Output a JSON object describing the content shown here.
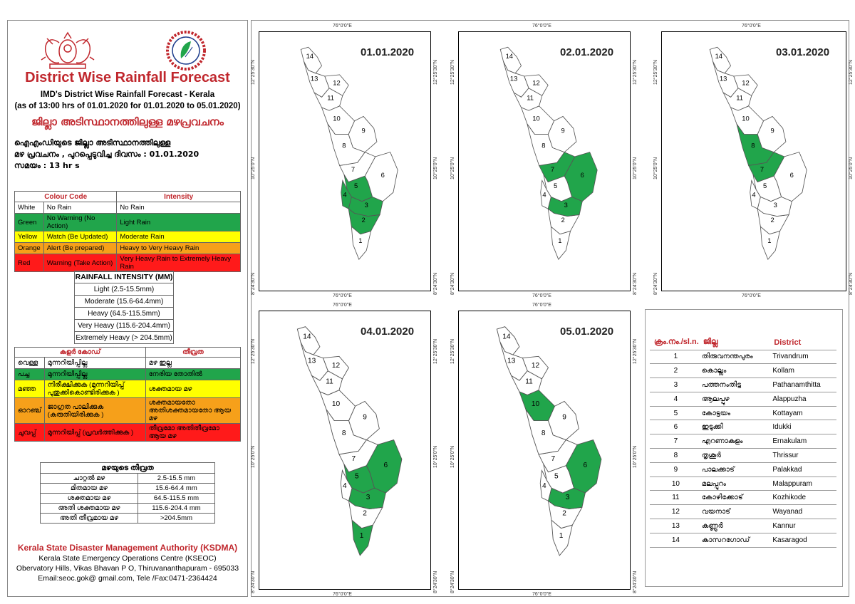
{
  "header": {
    "title": "District Wise Rainfall Forecast",
    "subtitle": "IMD's District Wise Rainfall Forecast - Kerala",
    "subtitle2": "(as of 13:00 hrs of 01.01.2020  for 01.01.2020  to 05.01.2020)",
    "mal_title": "ജില്ലാ അടിസ്ഥാനത്തിലുള്ള മഴപ്രവചനം",
    "issue_line1": "ഐഎംഡിയുടെ ജില്ലാ      അടിസ്ഥാനത്തിലുള്ള",
    "issue_line2": "മഴ പ്രവചനം  , പുറപ്പെടുവിച്ച       ദിവസം : 01.01.2020",
    "issue_line3": "സമയം : 13   hr s"
  },
  "colour_code": {
    "headers": [
      "Colour Code",
      "Intensity"
    ],
    "rows": [
      {
        "name": "White",
        "code": "No Rain",
        "intensity": "No Rain",
        "cls": "w"
      },
      {
        "name": "Green",
        "code": "No Warning (No Action)",
        "intensity": "Light Rain",
        "cls": "g"
      },
      {
        "name": "Yellow",
        "code": "Watch (Be Updated)",
        "intensity": "Moderate Rain",
        "cls": "y"
      },
      {
        "name": "Orange",
        "code": "Alert (Be prepared)",
        "intensity": "Heavy to Very Heavy Rain",
        "cls": "o"
      },
      {
        "name": "Red",
        "code": "Warning (Take Action)",
        "intensity": "Very Heavy Rain to Extremely Heavy Rain",
        "cls": "r"
      }
    ]
  },
  "rainfall_intensity": {
    "title": "RAINFALL INTENSITY (MM)",
    "rows": [
      "Light (2.5-15.5mm)",
      "Moderate (15.6-64.4mm)",
      "Heavy (64.5-115.5mm)",
      "Very Heavy (115.6-204.4mm)",
      "Extremely Heavy (> 204.5mm)"
    ]
  },
  "mal_colour_code": {
    "headers": [
      "കളർ കോഡ്",
      "തീവ്രത"
    ],
    "rows": [
      {
        "name": "വെള്ള",
        "code": "മുന്നറിയിപ്പില്ല",
        "intensity": "മഴ ഇല്ല",
        "cls": "w"
      },
      {
        "name": "പച്ച",
        "code": "മുന്നറിയിപ്പില്ല",
        "intensity": "നേരിയ തോതിൽ",
        "cls": "g"
      },
      {
        "name": "മഞ്ഞ",
        "code": "നിരീക്ഷിക്കുക (മുന്നറിയിപ്പ് പുതുക്കികൊണ്ടിരിക്കുക )",
        "intensity": "ശക്തമായ മഴ",
        "cls": "y"
      },
      {
        "name": "ഓറഞ്ച്",
        "code": "ജാഗ്രത പാലിക്കുക (കരുതിയിരിക്കുക )",
        "intensity": "ശക്തമായതോ അതിശക്തമായതോ ആയ മഴ",
        "cls": "o"
      },
      {
        "name": "ചുവപ്പ്",
        "code": "മുന്നറിയിപ്പ് (പ്രവർത്തിക്കുക )",
        "intensity": "തീവ്രമോ അതിതീവ്രമോ ആയ മഴ",
        "cls": "r"
      }
    ]
  },
  "mal_intensity": {
    "title": "മഴയുടെ തീവ്രത",
    "rows": [
      {
        "label": "ചാറ്റൽ മഴ",
        "range": "2.5-15.5 mm"
      },
      {
        "label": "മിതമായ മഴ",
        "range": "15.6-64.4 mm"
      },
      {
        "label": "ശക്തമായ മഴ",
        "range": "64.5-115.5 mm"
      },
      {
        "label": "അതി ശക്തമായ മഴ",
        "range": "115.6-204.4 mm"
      },
      {
        "label": "അതി തീവ്രമായ മഴ",
        "range": ">204.5mm"
      }
    ]
  },
  "footer": {
    "org": "Kerala State Disaster Management Authority (KSDMA)",
    "line1": "Kerala State Emergency Operations Centre (KSEOC)",
    "line2": "Obervatory Hills, Vikas Bhavan P O, Thiruvananthapuram - 695033",
    "line3": "Email:seoc.gok@ gmail.com, Tele /Fax:0471-2364424"
  },
  "coords": {
    "lon": "76°0'0\"E",
    "lat1": "12°25'30\"N",
    "lat2": "10°25'0\"N",
    "lat3": "8°24'30\"N"
  },
  "maps": [
    {
      "date": "01.01.2020",
      "green": [
        2,
        3,
        4,
        5
      ]
    },
    {
      "date": "02.01.2020",
      "green": [
        3,
        6,
        7
      ]
    },
    {
      "date": "03.01.2020",
      "green": [
        7,
        8
      ]
    },
    {
      "date": "04.01.2020",
      "green": [
        1,
        3,
        5,
        6
      ]
    },
    {
      "date": "05.01.2020",
      "green": [
        3,
        6,
        10
      ]
    }
  ],
  "colors": {
    "green": "#21a54b",
    "white": "#ffffff",
    "outline": "#555555"
  },
  "districts": {
    "headers": [
      "ക്രം.നം./sl.n.",
      "ജില്ല",
      "District"
    ],
    "rows": [
      {
        "n": "1",
        "mal": "തിരുവനന്തപുരം",
        "en": "Trivandrum"
      },
      {
        "n": "2",
        "mal": "കൊല്ലം",
        "en": "Kollam"
      },
      {
        "n": "3",
        "mal": "പത്തനംതിട്ട",
        "en": "Pathanamthitta"
      },
      {
        "n": "4",
        "mal": "ആലപ്പുഴ",
        "en": "Alappuzha"
      },
      {
        "n": "5",
        "mal": "കോട്ടയം",
        "en": "Kottayam"
      },
      {
        "n": "6",
        "mal": "ഇടുക്കി",
        "en": "Idukki"
      },
      {
        "n": "7",
        "mal": "എറണാകുളം",
        "en": "Ernakulam"
      },
      {
        "n": "8",
        "mal": "തൃശൂർ",
        "en": "Thrissur"
      },
      {
        "n": "9",
        "mal": "പാലക്കാട്",
        "en": "Palakkad"
      },
      {
        "n": "10",
        "mal": "മലപ്പുറം",
        "en": "Malappuram"
      },
      {
        "n": "11",
        "mal": "കോഴിക്കോട്",
        "en": "Kozhikode"
      },
      {
        "n": "12",
        "mal": "വയനാട്",
        "en": "Wayanad"
      },
      {
        "n": "13",
        "mal": "കണ്ണൂർ",
        "en": "Kannur"
      },
      {
        "n": "14",
        "mal": "കാസറഗോഡ്",
        "en": "Kasaragod"
      }
    ]
  }
}
